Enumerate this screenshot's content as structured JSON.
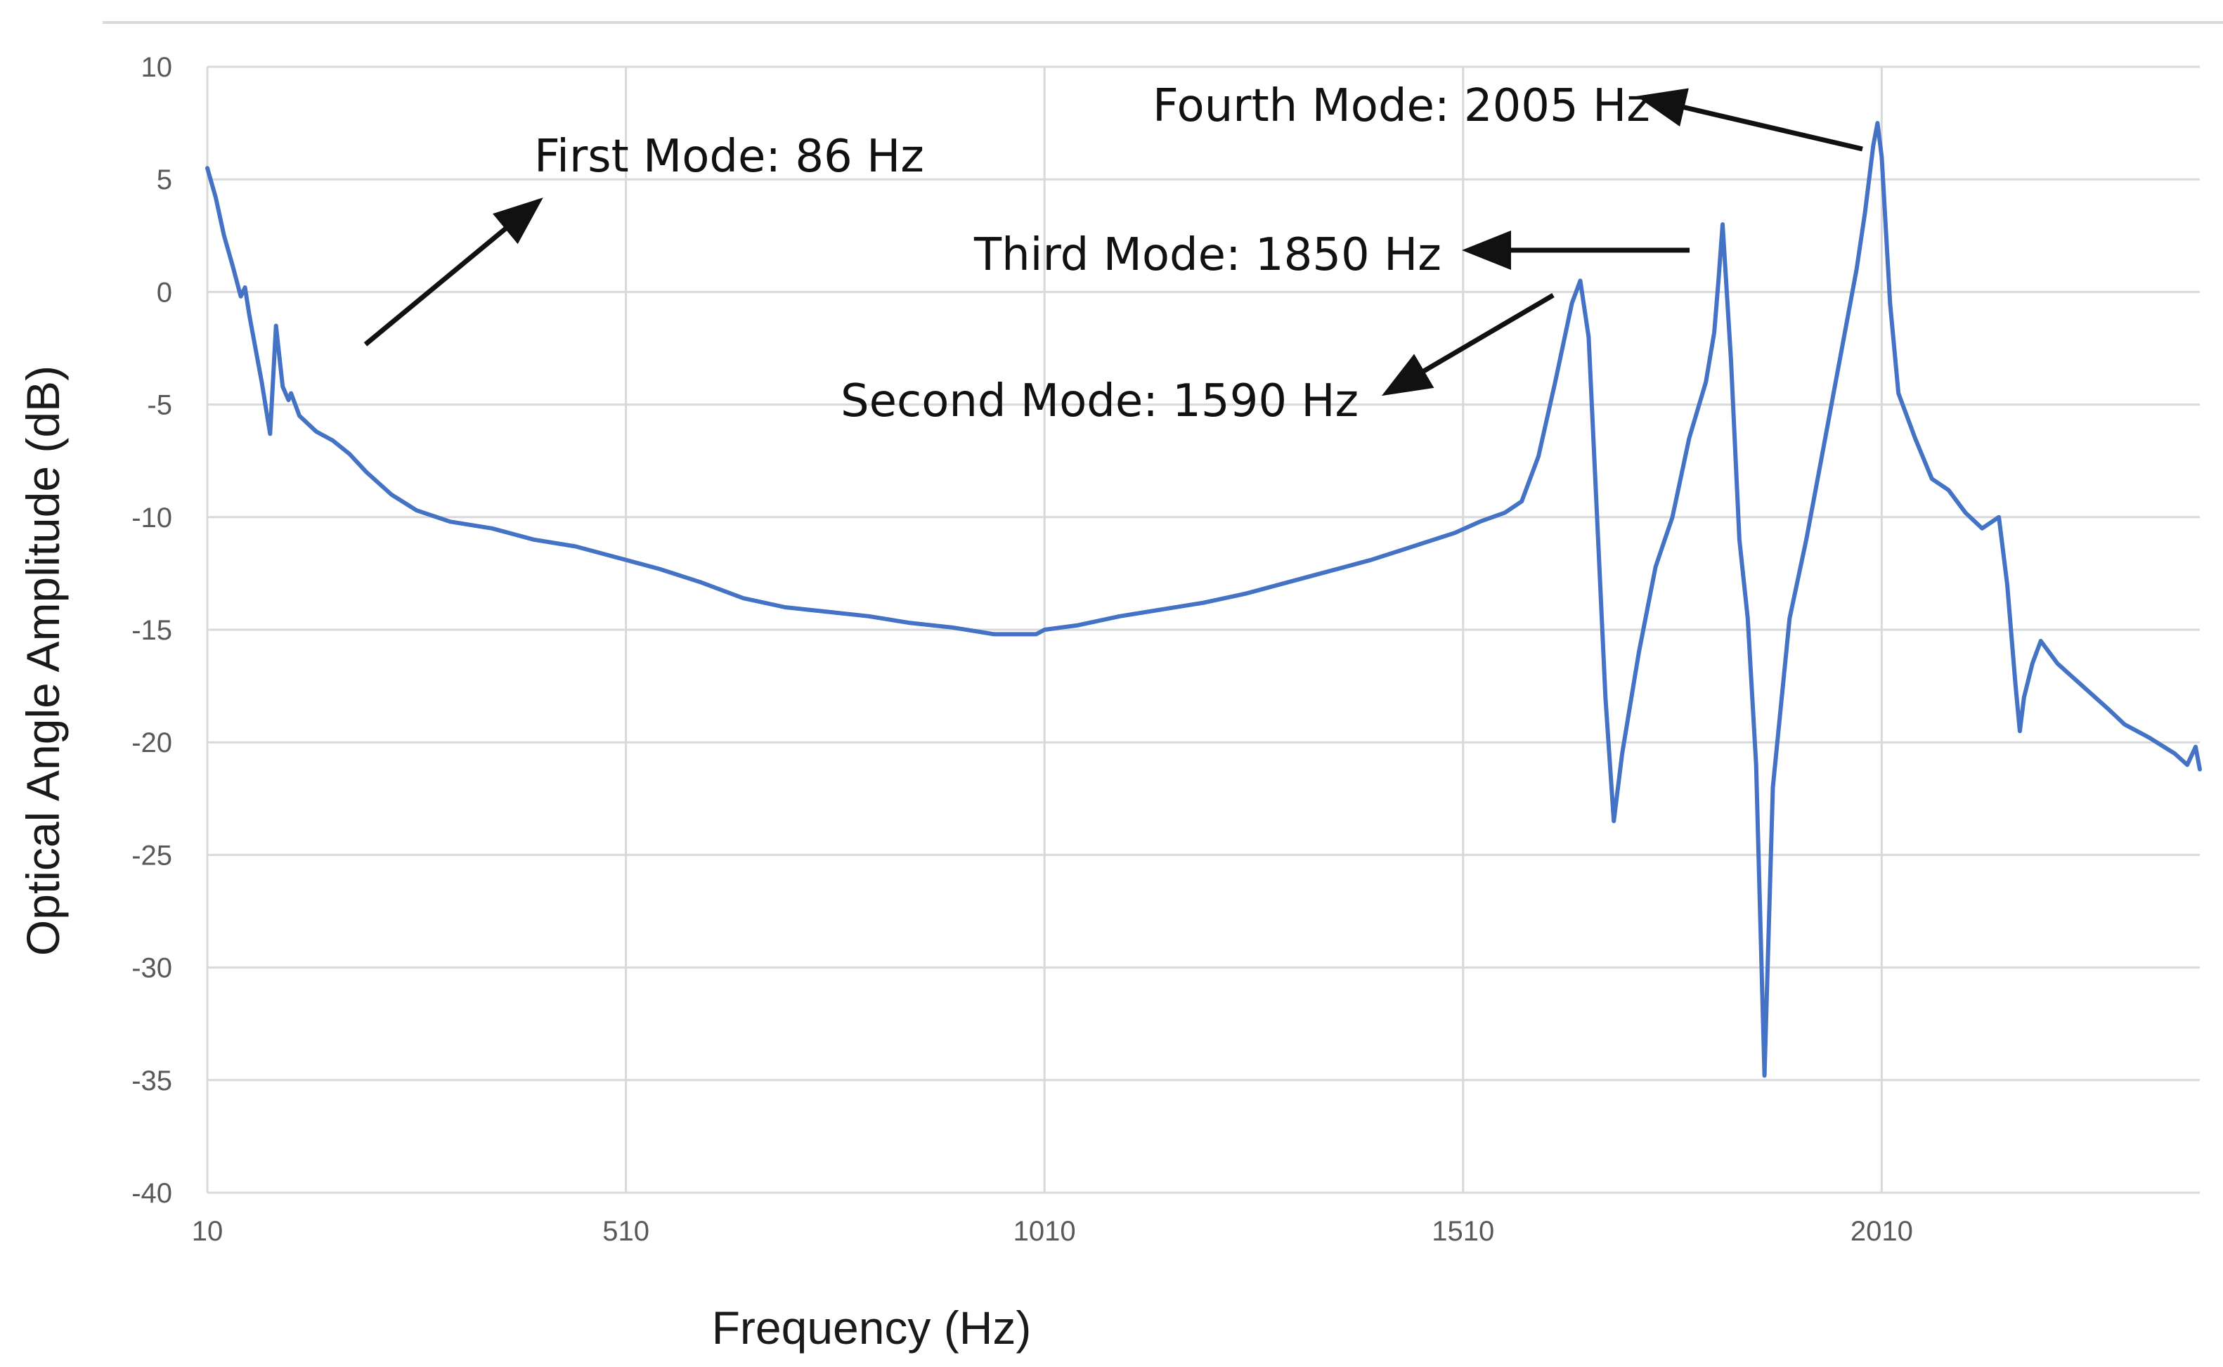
{
  "chart_data": {
    "type": "line",
    "title": "",
    "xlabel": "Frequency (Hz)",
    "ylabel": "Optical Angle Amplitude (dB)",
    "xlim": [
      10,
      2390
    ],
    "ylim": [
      -40,
      10
    ],
    "xticks": [
      10,
      510,
      1010,
      1510,
      2010
    ],
    "yticks": [
      10,
      5,
      0,
      -5,
      -10,
      -15,
      -20,
      -25,
      -30,
      -35,
      -40
    ],
    "grid": true,
    "legend": "none",
    "color": "#4472c4",
    "series": [
      {
        "x": [
          10,
          20,
          30,
          40,
          50,
          55,
          60,
          65,
          75,
          85,
          92,
          100,
          107,
          110,
          115,
          120,
          140,
          160,
          180,
          200,
          230,
          260,
          300,
          350,
          400,
          450,
          500,
          550,
          600,
          650,
          700,
          750,
          800,
          850,
          900,
          950,
          1000,
          1010,
          1050,
          1100,
          1150,
          1200,
          1250,
          1300,
          1350,
          1400,
          1450,
          1500,
          1530,
          1560,
          1580,
          1600,
          1620,
          1640,
          1650,
          1660,
          1670,
          1680,
          1690,
          1700,
          1720,
          1740,
          1760,
          1780,
          1800,
          1810,
          1815,
          1820,
          1830,
          1840,
          1850,
          1860,
          1870,
          1880,
          1900,
          1920,
          1940,
          1960,
          1980,
          1990,
          2000,
          2005,
          2010,
          2020,
          2030,
          2050,
          2070,
          2090,
          2110,
          2130,
          2150,
          2160,
          2170,
          2175,
          2180,
          2190,
          2200,
          2220,
          2250,
          2280,
          2300,
          2330,
          2360,
          2375,
          2385,
          2390
        ],
        "y": [
          5.5,
          4.2,
          2.5,
          1.2,
          -0.2,
          0.2,
          -1.0,
          -2.0,
          -4.0,
          -6.3,
          -1.5,
          -4.2,
          -4.8,
          -4.5,
          -5.0,
          -5.5,
          -6.2,
          -6.6,
          -7.2,
          -8.0,
          -9.0,
          -9.7,
          -10.2,
          -10.5,
          -11.0,
          -11.3,
          -11.8,
          -12.3,
          -12.9,
          -13.6,
          -14.0,
          -14.2,
          -14.4,
          -14.7,
          -14.9,
          -15.2,
          -15.2,
          -15.0,
          -14.8,
          -14.4,
          -14.1,
          -13.8,
          -13.4,
          -12.9,
          -12.4,
          -11.9,
          -11.3,
          -10.7,
          -10.2,
          -9.8,
          -9.3,
          -7.3,
          -4.0,
          -0.5,
          0.5,
          -2.0,
          -10.0,
          -18.0,
          -23.5,
          -20.5,
          -16.0,
          -12.2,
          -10.0,
          -6.5,
          -4.0,
          -1.8,
          0.5,
          3.0,
          -3.0,
          -11.0,
          -14.5,
          -21.0,
          -34.8,
          -22.0,
          -14.5,
          -11.0,
          -7.0,
          -3.0,
          1.0,
          3.5,
          6.5,
          7.5,
          6.0,
          -0.5,
          -4.5,
          -6.5,
          -8.3,
          -8.8,
          -9.8,
          -10.5,
          -10.0,
          -13.0,
          -17.5,
          -19.5,
          -18.0,
          -16.5,
          -15.5,
          -16.5,
          -17.5,
          -18.5,
          -19.2,
          -19.8,
          -20.5,
          -21.0,
          -20.2,
          -21.2
        ]
      }
    ],
    "annotations": [
      {
        "label": "First Mode: 86 Hz"
      },
      {
        "label": "Second Mode: 1590 Hz"
      },
      {
        "label": "Third Mode: 1850 Hz"
      },
      {
        "label": "Fourth Mode: 2005 Hz"
      }
    ]
  }
}
